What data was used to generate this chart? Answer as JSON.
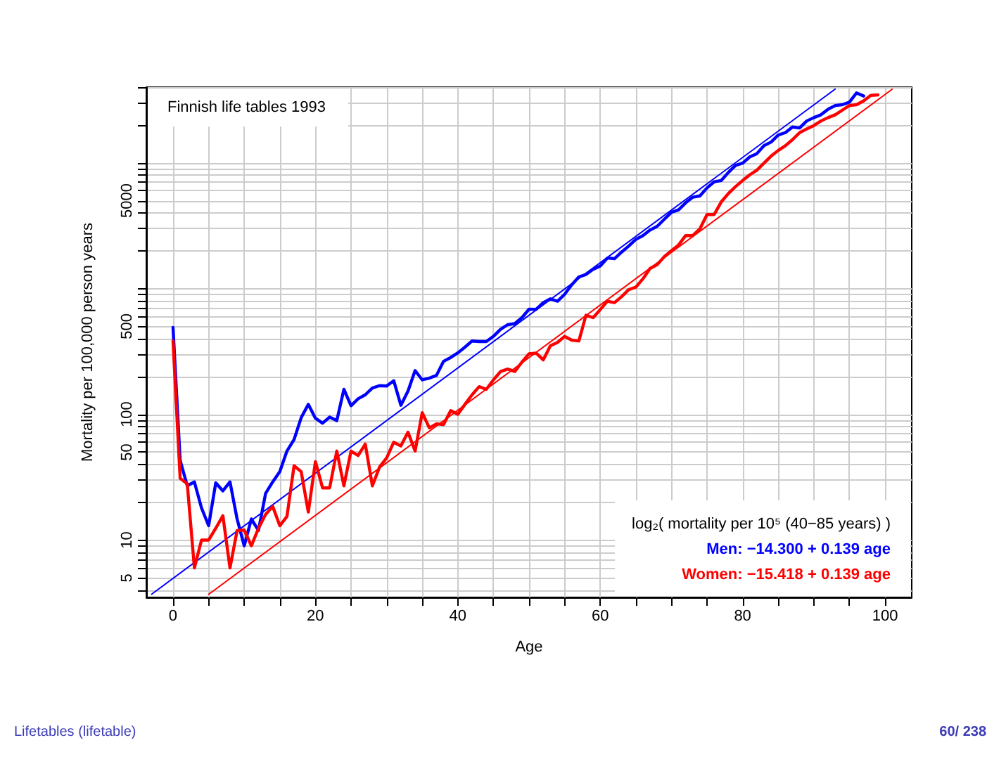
{
  "chart_data": {
    "type": "line",
    "title": "Finnish life tables 1993",
    "xlabel": "Age",
    "ylabel": "Mortality per 100,000 person years",
    "x": [
      0,
      1,
      2,
      3,
      4,
      5,
      6,
      7,
      8,
      9,
      10,
      11,
      12,
      13,
      14,
      15,
      16,
      17,
      18,
      19,
      20,
      21,
      22,
      23,
      24,
      25,
      26,
      27,
      28,
      29,
      30,
      31,
      32,
      33,
      34,
      35,
      36,
      37,
      38,
      39,
      40,
      41,
      42,
      43,
      44,
      45,
      46,
      47,
      48,
      49,
      50,
      51,
      52,
      53,
      54,
      55,
      56,
      57,
      58,
      59,
      60,
      61,
      62,
      63,
      64,
      65,
      66,
      67,
      68,
      69,
      70,
      71,
      72,
      73,
      74,
      75,
      76,
      77,
      78,
      79,
      80,
      81,
      82,
      83,
      84,
      85,
      86,
      87,
      88,
      89,
      90,
      91,
      92,
      93,
      94,
      95,
      96,
      97,
      98,
      99
    ],
    "series": [
      {
        "color": "#0000ff",
        "values": [
          490,
          43,
          27,
          29,
          18,
          13,
          28.5,
          24.6,
          29,
          14.7,
          9,
          14.7,
          11.9,
          23.5,
          29,
          35,
          51,
          63,
          94,
          120,
          93,
          85,
          95,
          89,
          158,
          117,
          133,
          143,
          162,
          169,
          168,
          185,
          118,
          153,
          223,
          188,
          194,
          204,
          264,
          283,
          308,
          342,
          383,
          379,
          379,
          417,
          474,
          516,
          526,
          587,
          685,
          684,
          773,
          828,
          793,
          901,
          1071,
          1238,
          1294,
          1423,
          1510,
          1749,
          1730,
          1950,
          2180,
          2460,
          2640,
          2920,
          3130,
          3560,
          4040,
          4230,
          4810,
          5330,
          5460,
          6320,
          7060,
          7240,
          8390,
          9540,
          9950,
          11150,
          11830,
          13690,
          14630,
          16640,
          17380,
          19260,
          18920,
          21530,
          22890,
          24110,
          26700,
          28560,
          29000,
          30360,
          36000,
          34000,
          null,
          null
        ]
      },
      {
        "color": "#ff0000",
        "values": [
          383,
          31,
          28,
          6,
          10,
          10,
          12.4,
          15.6,
          6,
          11.9,
          12,
          9,
          12.4,
          16,
          18.5,
          13,
          15.4,
          39,
          35,
          16.7,
          42,
          26,
          26,
          51,
          27,
          51,
          47,
          58,
          27,
          38,
          45,
          60,
          56,
          72,
          51,
          103,
          78,
          84,
          83,
          107,
          100,
          120,
          143,
          166,
          158,
          188,
          219,
          229,
          219,
          260,
          303,
          307,
          271,
          351,
          373,
          417,
          389,
          383,
          614,
          587,
          680,
          793,
          773,
          863,
          981,
          1025,
          1197,
          1445,
          1549,
          1792,
          2003,
          2220,
          2640,
          2640,
          2990,
          3880,
          3880,
          4890,
          5700,
          6470,
          7240,
          8030,
          8750,
          9950,
          11320,
          12540,
          13690,
          15280,
          17380,
          18620,
          19780,
          21530,
          22890,
          24110,
          26240,
          28560,
          29000,
          31100,
          34400,
          34700
        ]
      },
      {
        "type": "line",
        "color": "#0000ff",
        "x": [
          -3,
          93
        ],
        "values": [
          3.71,
          38620
        ]
      },
      {
        "type": "line",
        "color": "#ff0000",
        "x": [
          5,
          101
        ],
        "values": [
          3.7,
          38460
        ]
      }
    ],
    "xlim": [
      -3.75,
      103.75
    ],
    "ylim": [
      3.5,
      40000
    ],
    "xticks": [
      0,
      {
        "value": 5,
        "label": null
      },
      {
        "value": 10,
        "label": null
      },
      {
        "value": 15,
        "label": null
      },
      20,
      {
        "value": 25,
        "label": null
      },
      {
        "value": 30,
        "label": null
      },
      {
        "value": 35,
        "label": null
      },
      40,
      {
        "value": 45,
        "label": null
      },
      {
        "value": 50,
        "label": null
      },
      {
        "value": 55,
        "label": null
      },
      60,
      {
        "value": 65,
        "label": null
      },
      {
        "value": 70,
        "label": null
      },
      {
        "value": 75,
        "label": null
      },
      80,
      {
        "value": 85,
        "label": null
      },
      {
        "value": 90,
        "label": null
      },
      {
        "value": 95,
        "label": null
      },
      100
    ],
    "yticks": [
      {
        "value": 4,
        "label": null
      },
      5,
      {
        "value": 6,
        "label": null
      },
      {
        "value": 7,
        "label": null
      },
      {
        "value": 8,
        "label": null
      },
      {
        "value": 9,
        "label": null
      },
      10,
      {
        "value": 20,
        "label": null
      },
      {
        "value": 30,
        "label": null
      },
      {
        "value": 40,
        "label": null
      },
      50,
      {
        "value": 60,
        "label": null
      },
      {
        "value": 70,
        "label": null
      },
      {
        "value": 80,
        "label": null
      },
      {
        "value": 90,
        "label": null
      },
      100,
      {
        "value": 200,
        "label": null
      },
      {
        "value": 300,
        "label": null
      },
      {
        "value": 400,
        "label": null
      },
      500,
      {
        "value": 600,
        "label": null
      },
      {
        "value": 700,
        "label": null
      },
      {
        "value": 800,
        "label": null
      },
      {
        "value": 900,
        "label": null
      },
      {
        "value": 1000,
        "label": null
      },
      {
        "value": 2000,
        "label": null
      },
      {
        "value": 3000,
        "label": null
      },
      {
        "value": 4000,
        "label": null
      },
      5000,
      {
        "value": 6000,
        "label": null
      },
      {
        "value": 7000,
        "label": null
      },
      {
        "value": 8000,
        "label": null
      },
      {
        "value": 9000,
        "label": null
      },
      {
        "value": 10000,
        "label": null
      },
      {
        "value": 20000,
        "label": null
      },
      {
        "value": 30000,
        "label": null
      },
      {
        "value": 40000,
        "label": null
      }
    ],
    "log": "y",
    "grid": true,
    "marker": "none",
    "line_style": "solid",
    "annotations": [
      "log₂( mortality per 10⁵ (40−85 years) )",
      "Men: −14.300 + 0.139 age",
      "Women: −15.418 + 0.139 age",
      "Lifetables (lifetable)",
      "60/ 238"
    ]
  }
}
